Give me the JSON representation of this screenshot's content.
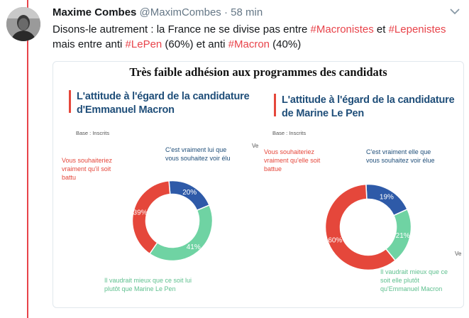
{
  "tweet": {
    "author_name": "Maxime Combes",
    "handle": "@MaximCombes",
    "separator": "·",
    "time": "58 min",
    "text_parts": [
      {
        "text": "Disons-le autrement : la France ne se divise pas entre ",
        "hashtag": false
      },
      {
        "text": "#Macronistes",
        "hashtag": true
      },
      {
        "text": " et ",
        "hashtag": false
      },
      {
        "text": "#Lepenistes",
        "hashtag": true
      },
      {
        "text": " mais entre anti ",
        "hashtag": false
      },
      {
        "text": "#LePen",
        "hashtag": true
      },
      {
        "text": " (60%) et anti ",
        "hashtag": false
      },
      {
        "text": "#Macron",
        "hashtag": true
      },
      {
        "text": " (40%)",
        "hashtag": false
      }
    ]
  },
  "card": {
    "title": "Très faible adhésion aux programmes des candidats"
  },
  "colors": {
    "red": "#e5473b",
    "blue": "#2e5aa8",
    "green": "#6fd3a3",
    "heading_blue": "#1f4e79",
    "hashtag": "#e8434a"
  },
  "chart_data": [
    {
      "type": "pie",
      "title": "L'attitude à l'égard de la candidature d'Emmanuel Macron",
      "title_lines": [
        "L'attitude à l'égard de la candidature",
        "d'Emmanuel Macron"
      ],
      "base_label": "Base : Inscrits",
      "edge_fragment": "Ve",
      "slices": [
        {
          "label_lines": [
            "C'est vraiment lui que",
            "vous souhaitez voir élu"
          ],
          "value": 20,
          "display": "20%",
          "color": "#2e5aa8"
        },
        {
          "label_lines": [
            "Il vaudrait mieux que ce soit lui",
            "plutôt que Marine Le Pen"
          ],
          "value": 41,
          "display": "41%",
          "color": "#6fd3a3"
        },
        {
          "label_lines": [
            "Vous souhaiteriez",
            "vraiment qu'il soit",
            "battu"
          ],
          "value": 39,
          "display": "39%",
          "color": "#e5473b"
        }
      ]
    },
    {
      "type": "pie",
      "title": "L'attitude à l'égard de la candidature de Marine Le Pen",
      "title_lines": [
        "L'attitude à l'égard de la candidature",
        "de Marine Le Pen"
      ],
      "base_label": "Base : Inscrits",
      "edge_fragment": "Ve",
      "slices": [
        {
          "label_lines": [
            "C'est vraiment elle que",
            "vous souhaitez voir élue"
          ],
          "value": 19,
          "display": "19%",
          "color": "#2e5aa8"
        },
        {
          "label_lines": [
            "Il vaudrait mieux que ce",
            "soit elle plutôt",
            "qu'Emmanuel Macron"
          ],
          "value": 21,
          "display": "21%",
          "color": "#6fd3a3"
        },
        {
          "label_lines": [
            "Vous souhaiteriez",
            "vraiment qu'elle soit",
            "battue"
          ],
          "value": 60,
          "display": "60%",
          "color": "#e5473b"
        }
      ]
    }
  ]
}
